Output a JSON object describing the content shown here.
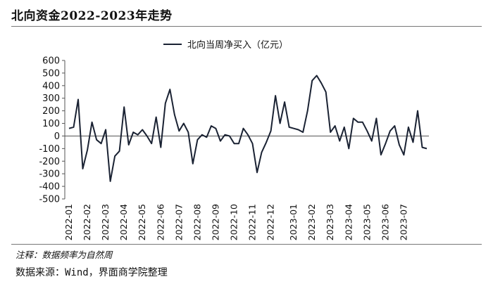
{
  "header": {
    "title": "北向资金2022-2023年走势"
  },
  "footer": {
    "note": "注释：数据频率为自然周",
    "source": "数据来源：Wind，界面商学院整理"
  },
  "chart_data": {
    "type": "line",
    "title": "",
    "xlabel": "",
    "ylabel": "",
    "ylim": [
      -500,
      600
    ],
    "yticks": [
      600,
      500,
      400,
      300,
      200,
      100,
      0,
      -100,
      -200,
      -300,
      -400,
      -500
    ],
    "grid": false,
    "legend_position": "top-center",
    "xtick_labels": [
      "2022-01",
      "2022-02",
      "2022-03",
      "2022-04",
      "2022-05",
      "2022-06",
      "2022-07",
      "2022-08",
      "2022-09",
      "2022-10",
      "2022-11",
      "2022-12",
      "2023-01",
      "2023-02",
      "2023-03",
      "2023-04",
      "2023-05",
      "2023-06",
      "2023-07"
    ],
    "xtick_indices": [
      0,
      4,
      8,
      12,
      16,
      20,
      24,
      28,
      32,
      36,
      40,
      44,
      49,
      53,
      57,
      61,
      65,
      69,
      73
    ],
    "series": [
      {
        "name": "北向当周净买入（亿元）",
        "color": "#1a2233",
        "values": [
          60,
          70,
          290,
          -260,
          -110,
          110,
          -30,
          -60,
          50,
          -360,
          -160,
          -120,
          230,
          -70,
          30,
          10,
          50,
          0,
          -60,
          150,
          -90,
          260,
          370,
          170,
          40,
          100,
          30,
          -220,
          -30,
          10,
          -10,
          80,
          60,
          -40,
          10,
          0,
          -60,
          -60,
          60,
          10,
          -60,
          -290,
          -130,
          -50,
          40,
          320,
          100,
          270,
          70,
          60,
          50,
          30,
          200,
          440,
          480,
          420,
          350,
          30,
          80,
          -40,
          70,
          -100,
          140,
          110,
          110,
          40,
          -40,
          140,
          -150,
          -60,
          40,
          80,
          -70,
          -150,
          70,
          -50,
          200,
          -90,
          -100
        ]
      }
    ]
  }
}
